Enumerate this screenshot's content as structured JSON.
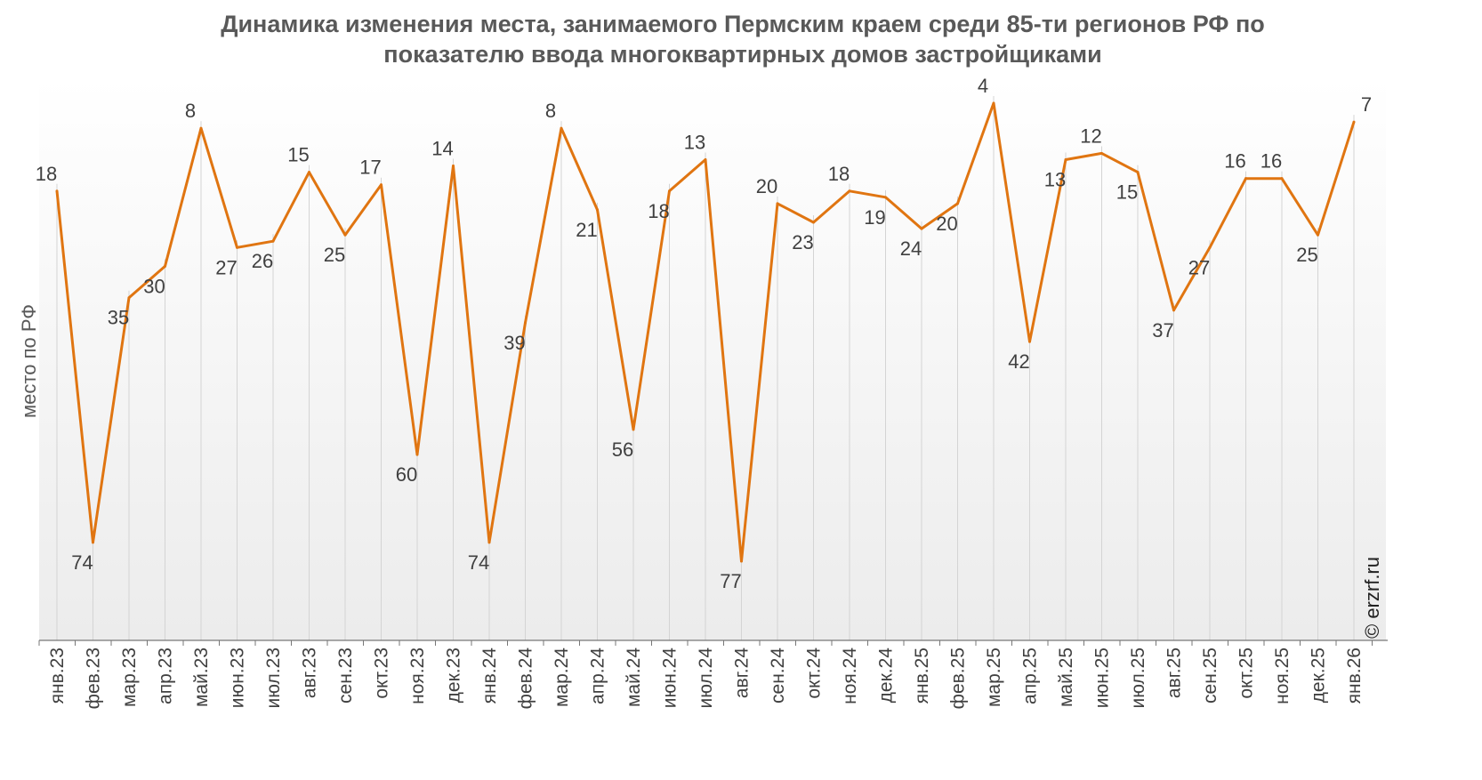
{
  "chart_data": {
    "type": "line",
    "title_lines": [
      "Динамика изменения места, занимаемого Пермским краем среди 85-ти регионов РФ по",
      "показателю ввода многоквартирных домов застройщиками"
    ],
    "ylabel": "место по РФ",
    "y_inverted": true,
    "ylim": [
      4,
      77
    ],
    "grid": false,
    "legend": "none",
    "line_color": "#E07511",
    "categories": [
      "янв.23",
      "фев.23",
      "мар.23",
      "апр.23",
      "май.23",
      "июн.23",
      "июл.23",
      "авг.23",
      "сен.23",
      "окт.23",
      "ноя.23",
      "дек.23",
      "янв.24",
      "фев.24",
      "мар.24",
      "апр.24",
      "май.24",
      "июн.24",
      "июл.24",
      "авг.24",
      "сен.24",
      "окт.24",
      "ноя.24",
      "дек.24",
      "янв.25",
      "фев.25",
      "мар.25",
      "апр.25",
      "май.25",
      "июн.25",
      "июл.25",
      "авг.25",
      "сен.25",
      "окт.25",
      "ноя.25",
      "дек.25",
      "янв.26"
    ],
    "series": [
      {
        "values": [
          18,
          74,
          35,
          30,
          8,
          27,
          26,
          15,
          25,
          17,
          60,
          14,
          74,
          39,
          8,
          21,
          56,
          18,
          13,
          77,
          20,
          23,
          18,
          19,
          24,
          20,
          4,
          42,
          13,
          12,
          15,
          37,
          27,
          16,
          16,
          25,
          7
        ]
      }
    ]
  },
  "credit": "© erzrf.ru"
}
